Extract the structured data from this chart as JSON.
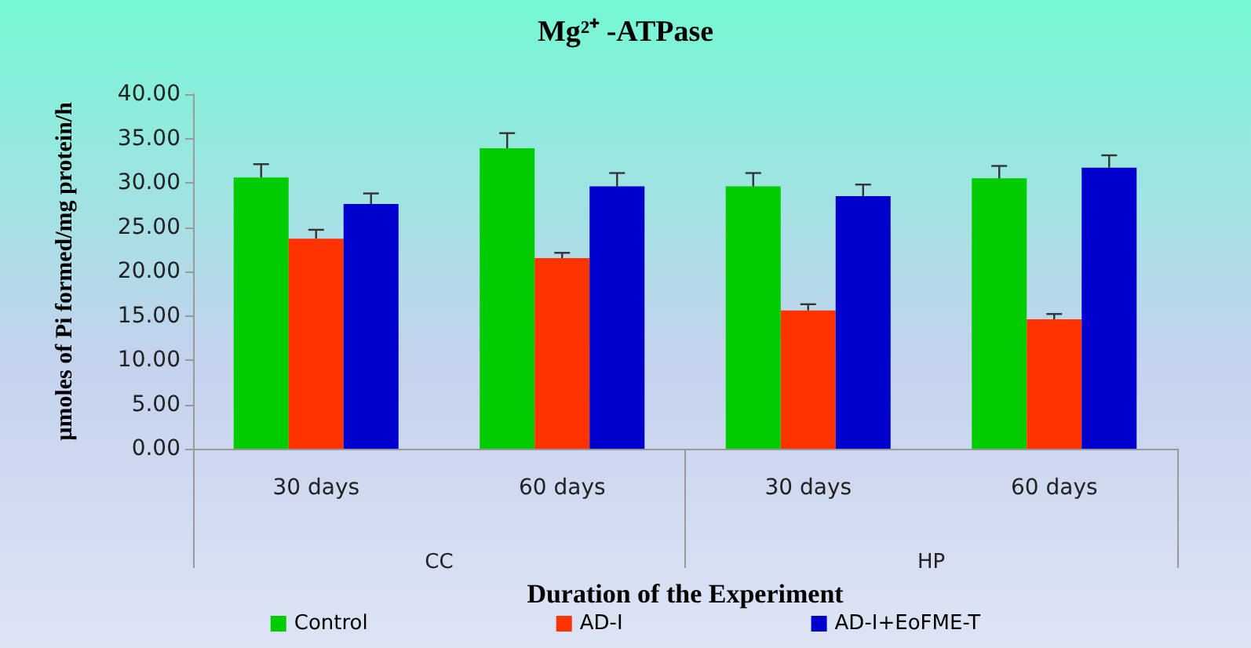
{
  "chart_data": {
    "type": "bar",
    "title": "Mg²⁺ -ATPase",
    "xlabel": "Duration of the Experiment",
    "ylabel": "µmoles of Pi formed/mg protein/h",
    "categories": [
      "30 days",
      "60 days",
      "30 days",
      "60 days"
    ],
    "annotations": [
      "CC",
      "HP"
    ],
    "series": [
      {
        "name": "Control",
        "color": "#00cc00",
        "values": [
          30.6,
          33.9,
          29.6,
          30.5
        ],
        "errors": [
          1.5,
          1.7,
          1.5,
          1.4
        ]
      },
      {
        "name": "AD-I",
        "color": "#ff3300",
        "values": [
          23.7,
          21.5,
          15.6,
          14.6
        ],
        "errors": [
          1.0,
          0.6,
          0.7,
          0.6
        ]
      },
      {
        "name": "AD-I+EoFME-T",
        "color": "#0000cc",
        "values": [
          27.6,
          29.6,
          28.5,
          31.7
        ],
        "errors": [
          1.2,
          1.5,
          1.3,
          1.4
        ]
      }
    ],
    "ylim": [
      0,
      40
    ],
    "yticks": [
      {
        "value": 0,
        "label": "0.00"
      },
      {
        "value": 5,
        "label": "5.00"
      },
      {
        "value": 10,
        "label": "10.00"
      },
      {
        "value": 15,
        "label": "15.00"
      },
      {
        "value": 20,
        "label": "20.00"
      },
      {
        "value": 25,
        "label": "25.00"
      },
      {
        "value": 30,
        "label": "30.00"
      },
      {
        "value": 35,
        "label": "35.00"
      },
      {
        "value": 40,
        "label": "40.00"
      }
    ],
    "grid": false,
    "legend": "bottom"
  }
}
